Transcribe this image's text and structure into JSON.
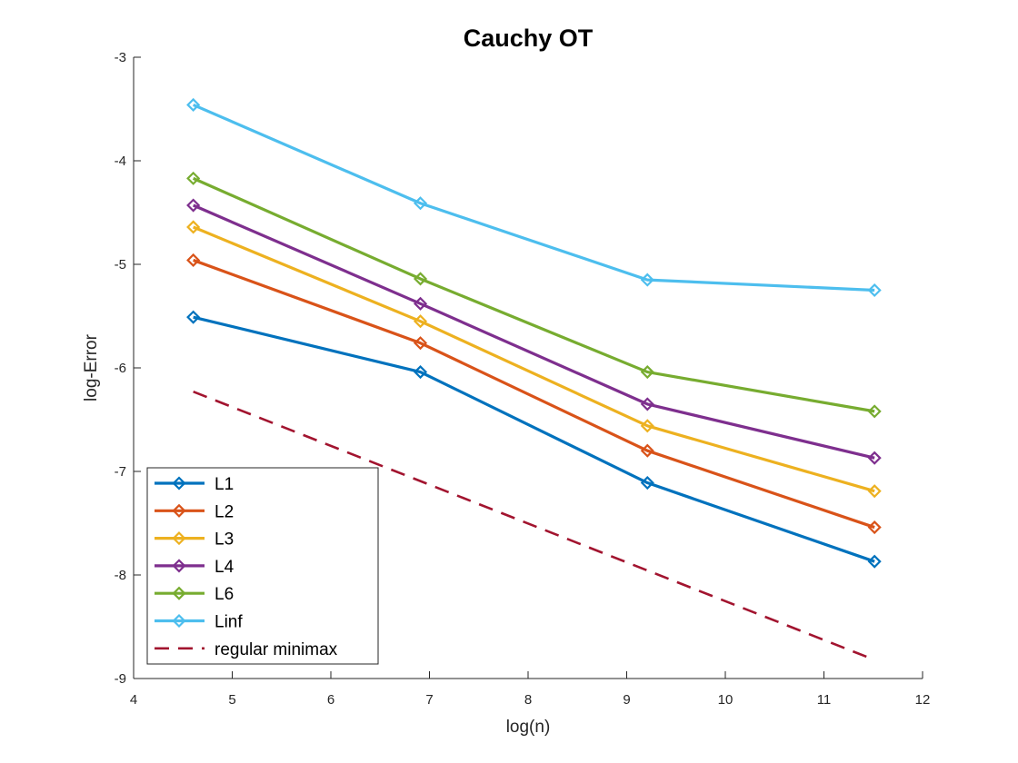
{
  "chart_data": {
    "type": "line",
    "title": "Cauchy OT",
    "xlabel": "log(n)",
    "ylabel": "log-Error",
    "xlim": [
      4,
      12
    ],
    "ylim": [
      -9,
      -3
    ],
    "xticks": [
      4,
      5,
      6,
      7,
      8,
      9,
      10,
      11,
      12
    ],
    "yticks": [
      -9,
      -8,
      -7,
      -6,
      -5,
      -4,
      -3
    ],
    "xtick_labels": [
      "4",
      "5",
      "6",
      "7",
      "8",
      "9",
      "10",
      "11",
      "12"
    ],
    "ytick_labels": [
      "-9",
      "-8",
      "-7",
      "-6",
      "-5",
      "-4",
      "-3"
    ],
    "x": [
      4.605,
      6.908,
      9.21,
      11.513
    ],
    "legend_position": "bottom-left",
    "series": [
      {
        "name": "L1",
        "color": "#0072BD",
        "marker": "diamond",
        "values": [
          -5.51,
          -6.04,
          -7.11,
          -7.87
        ]
      },
      {
        "name": "L2",
        "color": "#D95319",
        "marker": "diamond",
        "values": [
          -4.96,
          -5.76,
          -6.8,
          -7.54
        ]
      },
      {
        "name": "L3",
        "color": "#EDB120",
        "marker": "diamond",
        "values": [
          -4.64,
          -5.55,
          -6.56,
          -7.19
        ]
      },
      {
        "name": "L4",
        "color": "#7E2F8E",
        "marker": "diamond",
        "values": [
          -4.43,
          -5.38,
          -6.35,
          -6.87
        ]
      },
      {
        "name": "L6",
        "color": "#77AC30",
        "marker": "diamond",
        "values": [
          -4.17,
          -5.14,
          -6.04,
          -6.42
        ]
      },
      {
        "name": "Linf",
        "color": "#4DBEEE",
        "marker": "diamond",
        "values": [
          -3.46,
          -4.41,
          -5.15,
          -5.25
        ]
      },
      {
        "name": "regular minimax",
        "color": "#A2142F",
        "marker": "none",
        "dashed": true,
        "x": [
          4.605,
          11.513
        ],
        "values": [
          -6.23,
          -8.82
        ]
      }
    ]
  }
}
